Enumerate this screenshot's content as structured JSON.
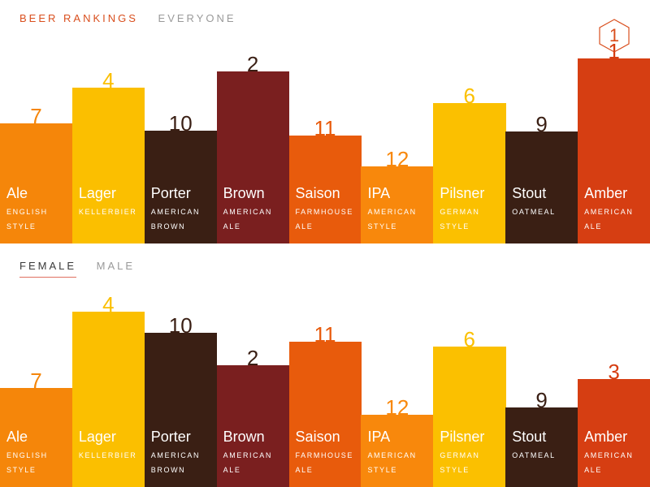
{
  "header": {
    "title": "BEER RANKINGS",
    "scope": "EVERYONE",
    "badge": "1"
  },
  "tabs": {
    "female": "FEMALE",
    "male": "MALE"
  },
  "colors": {
    "Ale": "#f5860a",
    "Lager": "#fbbf00",
    "Porter": "#3a1f14",
    "Brown": "#7a1f1f",
    "Saison": "#e85b0c",
    "IPA": "#f8880c",
    "Pilsner": "#fbc000",
    "Stout": "#3a1f14",
    "Amber": "#d63e12"
  },
  "chart_data": [
    {
      "type": "bar",
      "title": "BEER RANKINGS — EVERYONE",
      "categories": [
        "Ale",
        "Lager",
        "Porter",
        "Brown",
        "Saison",
        "IPA",
        "Pilsner",
        "Stout",
        "Amber"
      ],
      "subtitles": [
        [
          "ENGLISH",
          "STYLE"
        ],
        [
          "KELLERBIER",
          ""
        ],
        [
          "AMERICAN",
          "BROWN"
        ],
        [
          "AMERICAN",
          "ALE"
        ],
        [
          "FARMHOUSE",
          "ALE"
        ],
        [
          "AMERICAN",
          "STYLE"
        ],
        [
          "GERMAN",
          "STYLE"
        ],
        [
          "OATMEAL",
          ""
        ],
        [
          "AMERICAN",
          "ALE"
        ]
      ],
      "ranks": [
        "7",
        "4",
        "10",
        "2",
        "11",
        "12",
        "6",
        "9",
        "1"
      ],
      "values": [
        148,
        192,
        139,
        212,
        133,
        95,
        173,
        138,
        228
      ],
      "ylim": [
        0,
        260
      ],
      "xlabel": "",
      "ylabel": ""
    },
    {
      "type": "bar",
      "title": "BEER RANKINGS — FEMALE",
      "categories": [
        "Ale",
        "Lager",
        "Porter",
        "Brown",
        "Saison",
        "IPA",
        "Pilsner",
        "Stout",
        "Amber"
      ],
      "subtitles": [
        [
          "ENGLISH",
          "STYLE"
        ],
        [
          "KELLERBIER",
          ""
        ],
        [
          "AMERICAN",
          "BROWN"
        ],
        [
          "AMERICAN",
          "ALE"
        ],
        [
          "FARMHOUSE",
          "ALE"
        ],
        [
          "AMERICAN",
          "STYLE"
        ],
        [
          "GERMAN",
          "STYLE"
        ],
        [
          "OATMEAL",
          ""
        ],
        [
          "AMERICAN",
          "ALE"
        ]
      ],
      "ranks": [
        "7",
        "4",
        "10",
        "2",
        "11",
        "12",
        "6",
        "9",
        "3"
      ],
      "values": [
        122,
        216,
        190,
        150,
        179,
        89,
        173,
        98,
        133
      ],
      "ylim": [
        0,
        260
      ],
      "xlabel": "",
      "ylabel": ""
    }
  ]
}
